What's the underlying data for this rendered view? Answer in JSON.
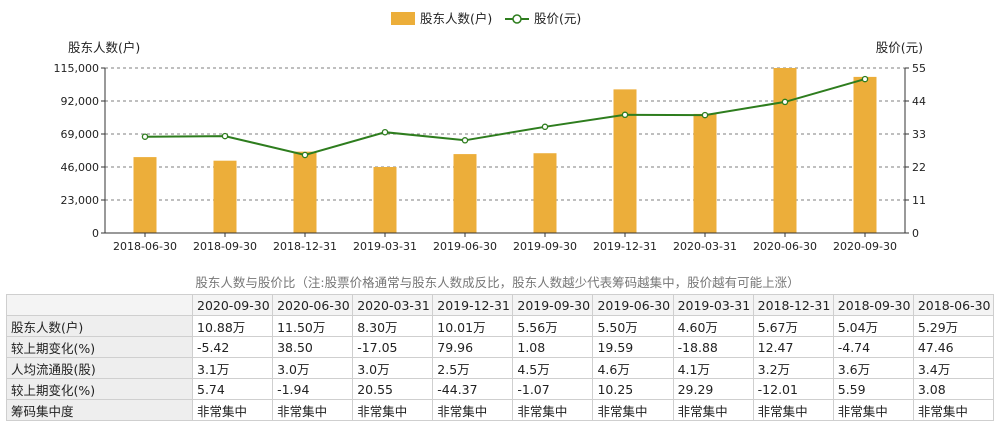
{
  "chart_data": {
    "type": "bar+line",
    "categories": [
      "2018-06-30",
      "2018-09-30",
      "2018-12-31",
      "2019-03-31",
      "2019-06-30",
      "2019-09-30",
      "2019-12-31",
      "2020-03-31",
      "2020-06-30",
      "2020-09-30"
    ],
    "series": [
      {
        "name": "股东人数(户)",
        "type": "bar",
        "axis": "left",
        "color": "#ecae3a",
        "values": [
          52900,
          50400,
          56700,
          46000,
          55000,
          55600,
          100100,
          83000,
          115000,
          108800
        ]
      },
      {
        "name": "股价(元)",
        "type": "line",
        "axis": "right",
        "color": "#2e7d1e",
        "values": [
          32.1,
          32.3,
          26.0,
          33.6,
          30.9,
          35.4,
          39.4,
          39.3,
          43.7,
          51.3
        ]
      }
    ],
    "ylabel_left": "股东人数(户)",
    "ylabel_right": "股价(元)",
    "ylim_left": [
      0,
      115000
    ],
    "ylim_right": [
      0,
      55
    ],
    "yticks_left": [
      "0",
      "23,000",
      "46,000",
      "69,000",
      "92,000",
      "115,000"
    ],
    "yticks_right": [
      "0",
      "11",
      "22",
      "33",
      "44",
      "55"
    ],
    "legend_position": "top-center",
    "grid": "horizontal-dashed"
  },
  "caption": "股东人数与股价比（注:股票价格通常与股东人数成反比，股东人数越少代表筹码越集中，股价越有可能上涨）",
  "table": {
    "headers": [
      "2020-09-30",
      "2020-06-30",
      "2020-03-31",
      "2019-12-31",
      "2019-09-30",
      "2019-06-30",
      "2019-03-31",
      "2018-12-31",
      "2018-09-30",
      "2018-06-30"
    ],
    "rows": [
      {
        "label": "股东人数(户)",
        "cells": [
          "10.88万",
          "11.50万",
          "8.30万",
          "10.01万",
          "5.56万",
          "5.50万",
          "4.60万",
          "5.67万",
          "5.04万",
          "5.29万"
        ]
      },
      {
        "label": "较上期变化(%)",
        "cells": [
          "-5.42",
          "38.50",
          "-17.05",
          "79.96",
          "1.08",
          "19.59",
          "-18.88",
          "12.47",
          "-4.74",
          "47.46"
        ]
      },
      {
        "label": "人均流通股(股)",
        "cells": [
          "3.1万",
          "3.0万",
          "3.0万",
          "2.5万",
          "4.5万",
          "4.6万",
          "4.1万",
          "3.2万",
          "3.6万",
          "3.4万"
        ]
      },
      {
        "label": "较上期变化(%)",
        "cells": [
          "5.74",
          "-1.94",
          "20.55",
          "-44.37",
          "-1.07",
          "10.25",
          "29.29",
          "-12.01",
          "5.59",
          "3.08"
        ]
      },
      {
        "label": "筹码集中度",
        "cells": [
          "非常集中",
          "非常集中",
          "非常集中",
          "非常集中",
          "非常集中",
          "非常集中",
          "非常集中",
          "非常集中",
          "非常集中",
          "非常集中"
        ]
      }
    ]
  }
}
